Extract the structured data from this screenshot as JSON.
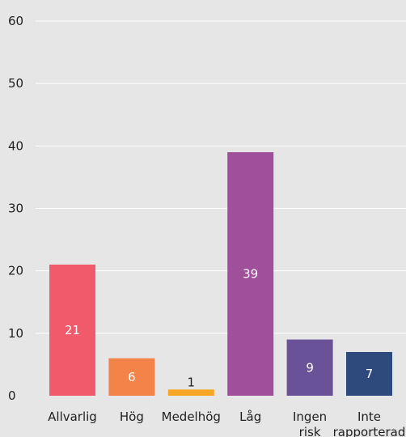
{
  "chart_data": {
    "type": "bar",
    "categories": [
      [
        "Allvarlig"
      ],
      [
        "Hög"
      ],
      [
        "Medelhög"
      ],
      [
        "Låg"
      ],
      [
        "Ingen",
        "risk"
      ],
      [
        "Inte",
        "rapporterad"
      ]
    ],
    "values": [
      21,
      6,
      1,
      39,
      9,
      7
    ],
    "value_labels": [
      "21",
      "6",
      "1",
      "39",
      "9",
      "7"
    ],
    "colors": [
      "#f05a6a",
      "#f4834a",
      "#f6a623",
      "#a0509a",
      "#6a5298",
      "#2e4a7d"
    ],
    "value_label_colors": [
      "#ffffff",
      "#ffffff",
      "#1f1f1f",
      "#ffffff",
      "#ffffff",
      "#ffffff"
    ],
    "ylim": [
      0,
      60
    ],
    "y_ticks": [
      0,
      10,
      20,
      30,
      40,
      50,
      60
    ],
    "grid": true,
    "title": "",
    "xlabel": "",
    "ylabel": ""
  }
}
